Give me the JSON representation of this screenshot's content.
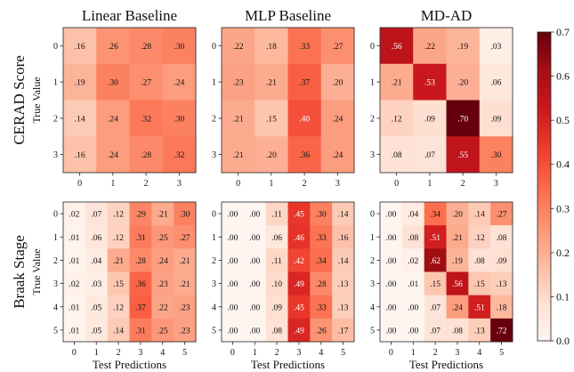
{
  "chart_data": {
    "type": "heatmap",
    "column_titles": [
      "Linear Baseline",
      "MLP Baseline",
      "MD-AD"
    ],
    "rows": [
      {
        "title": "CERAD Score",
        "ylabel": "True Value",
        "xlabel": "",
        "categories": [
          "0",
          "1",
          "2",
          "3"
        ],
        "matrices": [
          [
            [
              0.16,
              0.26,
              0.28,
              0.3
            ],
            [
              0.19,
              0.3,
              0.27,
              0.24
            ],
            [
              0.14,
              0.24,
              0.32,
              0.3
            ],
            [
              0.16,
              0.24,
              0.28,
              0.32
            ]
          ],
          [
            [
              0.22,
              0.18,
              0.33,
              0.27
            ],
            [
              0.23,
              0.21,
              0.37,
              0.2
            ],
            [
              0.21,
              0.15,
              0.4,
              0.24
            ],
            [
              0.21,
              0.2,
              0.36,
              0.24
            ]
          ],
          [
            [
              0.56,
              0.22,
              0.19,
              0.03
            ],
            [
              0.21,
              0.53,
              0.2,
              0.06
            ],
            [
              0.12,
              0.09,
              0.7,
              0.09
            ],
            [
              0.08,
              0.07,
              0.55,
              0.3
            ]
          ]
        ]
      },
      {
        "title": "Braak Stage",
        "ylabel": "True Value",
        "xlabel": "Test Predictions",
        "categories": [
          "0",
          "1",
          "2",
          "3",
          "4",
          "5"
        ],
        "matrices": [
          [
            [
              0.02,
              0.07,
              0.12,
              0.29,
              0.21,
              0.3
            ],
            [
              0.01,
              0.06,
              0.12,
              0.31,
              0.25,
              0.27
            ],
            [
              0.01,
              0.04,
              0.21,
              0.28,
              0.24,
              0.21
            ],
            [
              0.02,
              0.03,
              0.15,
              0.36,
              0.23,
              0.21
            ],
            [
              0.01,
              0.05,
              0.12,
              0.37,
              0.22,
              0.23
            ],
            [
              0.01,
              0.05,
              0.14,
              0.31,
              0.25,
              0.23
            ]
          ],
          [
            [
              0.0,
              0.0,
              0.11,
              0.45,
              0.3,
              0.14
            ],
            [
              0.0,
              0.0,
              0.06,
              0.46,
              0.33,
              0.16
            ],
            [
              0.0,
              0.0,
              0.11,
              0.42,
              0.34,
              0.14
            ],
            [
              0.0,
              0.0,
              0.1,
              0.49,
              0.28,
              0.13
            ],
            [
              0.0,
              0.0,
              0.09,
              0.45,
              0.33,
              0.13
            ],
            [
              0.0,
              0.0,
              0.08,
              0.49,
              0.26,
              0.17
            ]
          ],
          [
            [
              0.0,
              0.04,
              0.34,
              0.2,
              0.14,
              0.27
            ],
            [
              0.0,
              0.08,
              0.51,
              0.21,
              0.12,
              0.08
            ],
            [
              0.0,
              0.02,
              0.62,
              0.19,
              0.08,
              0.09
            ],
            [
              0.0,
              0.01,
              0.15,
              0.56,
              0.15,
              0.13
            ],
            [
              0.0,
              0.0,
              0.07,
              0.24,
              0.51,
              0.18
            ],
            [
              0.0,
              0.0,
              0.07,
              0.08,
              0.13,
              0.72
            ]
          ]
        ]
      }
    ],
    "colorbar": {
      "range": [
        0.0,
        0.7
      ],
      "ticks": [
        "0.0",
        "0.1",
        "0.2",
        "0.3",
        "0.4",
        "0.5",
        "0.6",
        "0.7"
      ],
      "colormap": "Reds",
      "low_color": "#fff5f0",
      "high_color": "#67000d"
    }
  }
}
